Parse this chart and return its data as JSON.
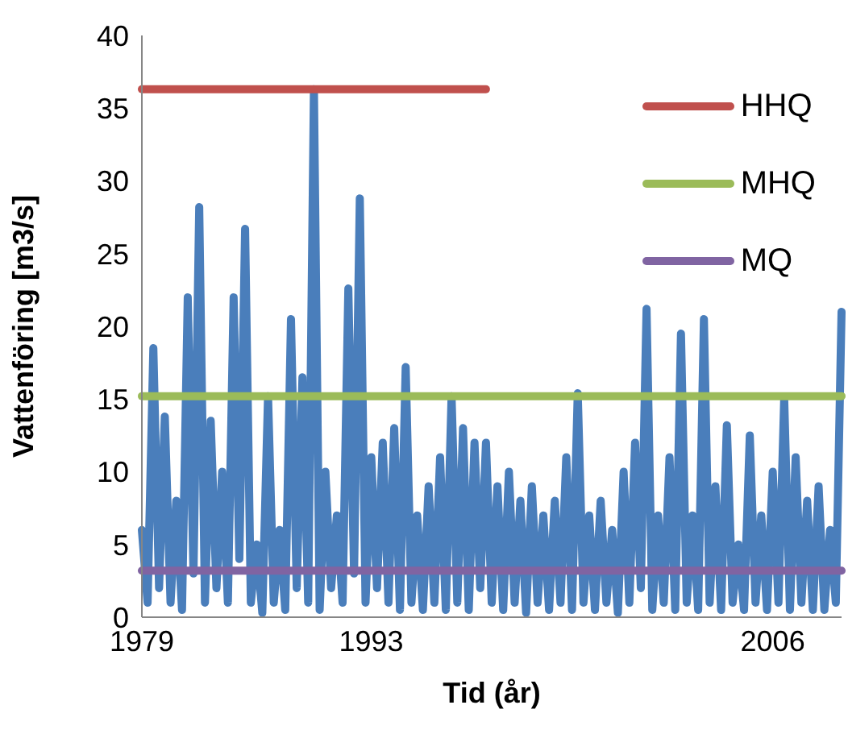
{
  "chart_data": {
    "type": "line",
    "xlabel": "Tid (år)",
    "ylabel": "Vattenföring [m3/s]",
    "categories": [
      "1979",
      null,
      null,
      null,
      null,
      null,
      null,
      null,
      null,
      null,
      null,
      null,
      null,
      null,
      null,
      null,
      null,
      null,
      null,
      null,
      null,
      null,
      null,
      null,
      null,
      null,
      null,
      null,
      null,
      null,
      null,
      null,
      null,
      null,
      null,
      null,
      null,
      null,
      null,
      null,
      "1993",
      null,
      null,
      null,
      null,
      null,
      null,
      null,
      null,
      null,
      null,
      null,
      null,
      null,
      null,
      null,
      null,
      null,
      null,
      null,
      null,
      null,
      null,
      null,
      null,
      null,
      null,
      null,
      null,
      null,
      null,
      null,
      null,
      null,
      null,
      null,
      null,
      null,
      null,
      null,
      null,
      null,
      null,
      null,
      null,
      null,
      null,
      null,
      null,
      null,
      null,
      null,
      null,
      null,
      null,
      null,
      null,
      null,
      null,
      null,
      null,
      null,
      null,
      null,
      null,
      null,
      null,
      null,
      null,
      null,
      "2006",
      null,
      null,
      null,
      null,
      null,
      null,
      null,
      null,
      null,
      null,
      null,
      null
    ],
    "series": [
      {
        "color": "#4a7ebb",
        "values": [
          6,
          1,
          18.5,
          2,
          13.8,
          1,
          8,
          0.5,
          22,
          3,
          28.2,
          1,
          13.5,
          2,
          10,
          1,
          22,
          4,
          26.7,
          1,
          5,
          0.3,
          15.2,
          1,
          6,
          0.5,
          20.5,
          2,
          16.5,
          1,
          36.3,
          0.5,
          10,
          2,
          7,
          1,
          22.6,
          3,
          28.8,
          1,
          11,
          2,
          12,
          1,
          13,
          0.5,
          17.2,
          1,
          7,
          0.5,
          9,
          1,
          11,
          0.5,
          15.2,
          1,
          13,
          0.5,
          12,
          2,
          12,
          1,
          9,
          0.5,
          10,
          1,
          8,
          0.3,
          9,
          1,
          7,
          0.5,
          8,
          1,
          11,
          0.5,
          15.4,
          1,
          7,
          0.5,
          8,
          1,
          6,
          0.3,
          10,
          1,
          12,
          2,
          21.2,
          0.5,
          7,
          1,
          11,
          0.5,
          19.5,
          1,
          7,
          0.5,
          20.5,
          1,
          9,
          0.5,
          13.2,
          1,
          5,
          0.5,
          12.5,
          1,
          7,
          0.5,
          10,
          1,
          15,
          0.5,
          11,
          1,
          8,
          0.5,
          9,
          0.5,
          6,
          1,
          21
        ]
      },
      {
        "name": "HHQ",
        "color": "#c0504d",
        "values": [
          36.3,
          36.3,
          36.3,
          36.3,
          36.3,
          36.3,
          36.3,
          36.3,
          36.3,
          36.3,
          36.3,
          36.3,
          36.3,
          36.3,
          36.3,
          36.3,
          36.3,
          36.3,
          36.3,
          36.3,
          36.3,
          36.3,
          36.3,
          36.3,
          36.3,
          36.3,
          36.3,
          36.3,
          36.3,
          36.3,
          36.3,
          36.3,
          36.3,
          36.3,
          36.3,
          36.3,
          36.3,
          36.3,
          36.3,
          36.3,
          36.3,
          36.3,
          36.3,
          36.3,
          36.3,
          36.3,
          36.3,
          36.3,
          36.3,
          36.3,
          36.3,
          36.3,
          36.3,
          36.3,
          36.3,
          36.3,
          36.3,
          36.3,
          36.3,
          36.3,
          36.3,
          null,
          null,
          null,
          null,
          null,
          null,
          null,
          null,
          null,
          null,
          null,
          null,
          null,
          null,
          null,
          null,
          null,
          null,
          null,
          null,
          null,
          null,
          null,
          null,
          null,
          null,
          null,
          null,
          null,
          null,
          null,
          null,
          null,
          null,
          null,
          null,
          null,
          null,
          null,
          null,
          null,
          null,
          null,
          null,
          null,
          null,
          null,
          null,
          null,
          null,
          null,
          null,
          null,
          null,
          null,
          null,
          null,
          null,
          null,
          null,
          null,
          null
        ]
      },
      {
        "name": "MHQ",
        "color": "#9bbb59",
        "values": [
          15.2,
          15.2,
          15.2,
          15.2,
          15.2,
          15.2,
          15.2,
          15.2,
          15.2,
          15.2,
          15.2,
          15.2,
          15.2,
          15.2,
          15.2,
          15.2,
          15.2,
          15.2,
          15.2,
          15.2,
          15.2,
          15.2,
          15.2,
          15.2,
          15.2,
          15.2,
          15.2,
          15.2,
          15.2,
          15.2,
          15.2,
          15.2,
          15.2,
          15.2,
          15.2,
          15.2,
          15.2,
          15.2,
          15.2,
          15.2,
          15.2,
          15.2,
          15.2,
          15.2,
          15.2,
          15.2,
          15.2,
          15.2,
          15.2,
          15.2,
          15.2,
          15.2,
          15.2,
          15.2,
          15.2,
          15.2,
          15.2,
          15.2,
          15.2,
          15.2,
          15.2,
          15.2,
          15.2,
          15.2,
          15.2,
          15.2,
          15.2,
          15.2,
          15.2,
          15.2,
          15.2,
          15.2,
          15.2,
          15.2,
          15.2,
          15.2,
          15.2,
          15.2,
          15.2,
          15.2,
          15.2,
          15.2,
          15.2,
          15.2,
          15.2,
          15.2,
          15.2,
          15.2,
          15.2,
          15.2,
          15.2,
          15.2,
          15.2,
          15.2,
          15.2,
          15.2,
          15.2,
          15.2,
          15.2,
          15.2,
          15.2,
          15.2,
          15.2,
          15.2,
          15.2,
          15.2,
          15.2,
          15.2,
          15.2,
          15.2,
          15.2,
          15.2,
          15.2,
          15.2,
          15.2,
          15.2,
          15.2,
          15.2,
          15.2,
          15.2,
          15.2,
          15.2,
          15.2
        ]
      },
      {
        "name": "MQ",
        "color": "#8064a2",
        "values": [
          3.2,
          3.2,
          3.2,
          3.2,
          3.2,
          3.2,
          3.2,
          3.2,
          3.2,
          3.2,
          3.2,
          3.2,
          3.2,
          3.2,
          3.2,
          3.2,
          3.2,
          3.2,
          3.2,
          3.2,
          3.2,
          3.2,
          3.2,
          3.2,
          3.2,
          3.2,
          3.2,
          3.2,
          3.2,
          3.2,
          3.2,
          3.2,
          3.2,
          3.2,
          3.2,
          3.2,
          3.2,
          3.2,
          3.2,
          3.2,
          3.2,
          3.2,
          3.2,
          3.2,
          3.2,
          3.2,
          3.2,
          3.2,
          3.2,
          3.2,
          3.2,
          3.2,
          3.2,
          3.2,
          3.2,
          3.2,
          3.2,
          3.2,
          3.2,
          3.2,
          3.2,
          3.2,
          3.2,
          3.2,
          3.2,
          3.2,
          3.2,
          3.2,
          3.2,
          3.2,
          3.2,
          3.2,
          3.2,
          3.2,
          3.2,
          3.2,
          3.2,
          3.2,
          3.2,
          3.2,
          3.2,
          3.2,
          3.2,
          3.2,
          3.2,
          3.2,
          3.2,
          3.2,
          3.2,
          3.2,
          3.2,
          3.2,
          3.2,
          3.2,
          3.2,
          3.2,
          3.2,
          3.2,
          3.2,
          3.2,
          3.2,
          3.2,
          3.2,
          3.2,
          3.2,
          3.2,
          3.2,
          3.2,
          3.2,
          3.2,
          3.2,
          3.2,
          3.2,
          3.2,
          3.2,
          3.2,
          3.2,
          3.2,
          3.2,
          3.2,
          3.2,
          3.2,
          3.2
        ]
      }
    ],
    "ylim": [
      0,
      40
    ],
    "yticks": [
      0,
      5,
      10,
      15,
      20,
      25,
      30,
      35,
      40
    ],
    "grid": false,
    "legend": "top right",
    "marker": "none",
    "line_style": "solid"
  }
}
